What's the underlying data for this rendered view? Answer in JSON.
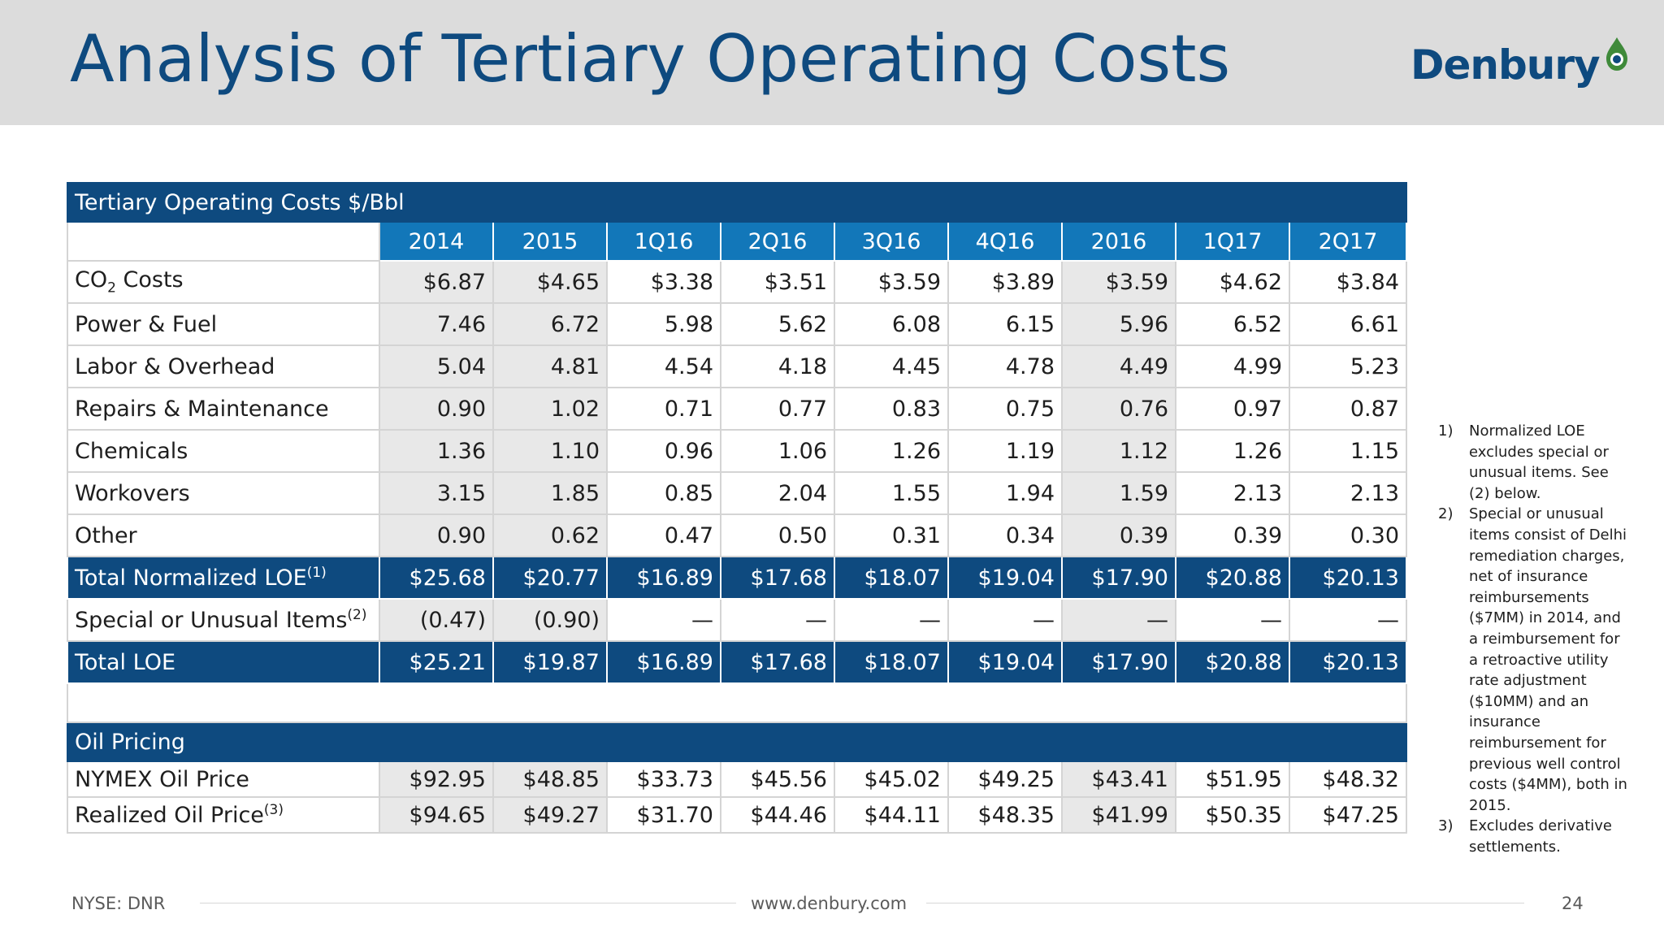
{
  "slide": {
    "title": "Analysis of Tertiary Operating Costs",
    "brand": "Denbury",
    "brand_color": "#0e4a7f",
    "accent_color": "#1277b9"
  },
  "table": {
    "section_title": "Tertiary Operating Costs $/Bbl",
    "columns": [
      "2014",
      "2015",
      "1Q16",
      "2Q16",
      "3Q16",
      "4Q16",
      "2016",
      "1Q17",
      "2Q17"
    ],
    "rows": {
      "co2": {
        "label_main": "CO",
        "label_sub": "2",
        "label_rest": " Costs",
        "values": [
          "$6.87",
          "$4.65",
          "$3.38",
          "$3.51",
          "$3.59",
          "$3.89",
          "$3.59",
          "$4.62",
          "$3.84"
        ]
      },
      "power": {
        "label": "Power & Fuel",
        "values": [
          "7.46",
          "6.72",
          "5.98",
          "5.62",
          "6.08",
          "6.15",
          "5.96",
          "6.52",
          "6.61"
        ]
      },
      "labor": {
        "label": "Labor & Overhead",
        "values": [
          "5.04",
          "4.81",
          "4.54",
          "4.18",
          "4.45",
          "4.78",
          "4.49",
          "4.99",
          "5.23"
        ]
      },
      "repairs": {
        "label": "Repairs & Maintenance",
        "values": [
          "0.90",
          "1.02",
          "0.71",
          "0.77",
          "0.83",
          "0.75",
          "0.76",
          "0.97",
          "0.87"
        ]
      },
      "chemicals": {
        "label": "Chemicals",
        "values": [
          "1.36",
          "1.10",
          "0.96",
          "1.06",
          "1.26",
          "1.19",
          "1.12",
          "1.26",
          "1.15"
        ]
      },
      "workovers": {
        "label": "Workovers",
        "values": [
          "3.15",
          "1.85",
          "0.85",
          "2.04",
          "1.55",
          "1.94",
          "1.59",
          "2.13",
          "2.13"
        ]
      },
      "other": {
        "label": "Other",
        "values": [
          "0.90",
          "0.62",
          "0.47",
          "0.50",
          "0.31",
          "0.34",
          "0.39",
          "0.39",
          "0.30"
        ]
      },
      "total_normalized": {
        "label": "Total Normalized LOE",
        "sup": "(1)",
        "values": [
          "$25.68",
          "$20.77",
          "$16.89",
          "$17.68",
          "$18.07",
          "$19.04",
          "$17.90",
          "$20.88",
          "$20.13"
        ]
      },
      "special": {
        "label": "Special or Unusual Items",
        "sup": "(2)",
        "values": [
          "(0.47)",
          "(0.90)",
          "—",
          "—",
          "—",
          "—",
          "—",
          "—",
          "—"
        ]
      },
      "total_loe": {
        "label": "Total LOE",
        "values": [
          "$25.21",
          "$19.87",
          "$16.89",
          "$17.68",
          "$18.07",
          "$19.04",
          "$17.90",
          "$20.88",
          "$20.13"
        ]
      }
    },
    "oil_section_title": "Oil Pricing",
    "oil_rows": {
      "nymex": {
        "label": "NYMEX Oil Price",
        "values": [
          "$92.95",
          "$48.85",
          "$33.73",
          "$45.56",
          "$45.02",
          "$49.25",
          "$43.41",
          "$51.95",
          "$48.32"
        ]
      },
      "realized": {
        "label": "Realized Oil Price",
        "sup": "(3)",
        "values": [
          "$94.65",
          "$49.27",
          "$31.70",
          "$44.46",
          "$44.11",
          "$48.35",
          "$41.99",
          "$50.35",
          "$47.25"
        ]
      }
    }
  },
  "footnotes": [
    {
      "num": "1)",
      "text": "Normalized LOE excludes special or unusual items. See (2) below."
    },
    {
      "num": "2)",
      "text": "Special or unusual items consist of Delhi remediation charges, net of insurance reimbursements ($7MM) in 2014, and a reimbursement for a retroactive utility rate adjustment ($10MM) and an insurance reimbursement for previous well control costs ($4MM), both in 2015."
    },
    {
      "num": "3)",
      "text": "Excludes derivative settlements."
    }
  ],
  "footer": {
    "ticker": "NYSE: DNR",
    "website": "www.denbury.com",
    "page": "24"
  }
}
